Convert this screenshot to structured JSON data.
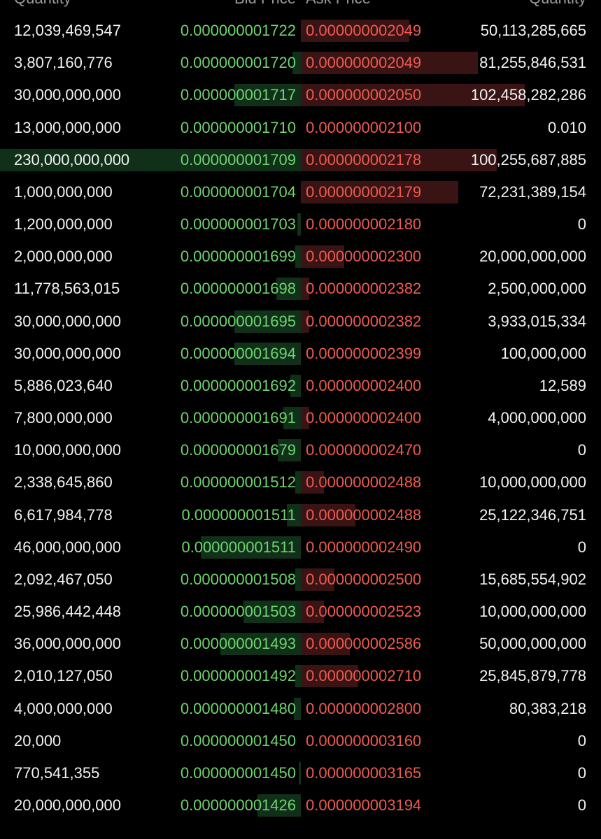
{
  "header": [
    "Quantity",
    "Bid Price",
    "Ask Price",
    "Quantity"
  ],
  "rows": [
    [
      "12,039,469,547",
      "0.000000001722",
      "0.000000002049",
      "50,113,285,665"
    ],
    [
      "3,807,160,776",
      "0.000000001720",
      "0.000000002049",
      "81,255,846,531"
    ],
    [
      "30,000,000,000",
      "0.000000001717",
      "0.000000002050",
      "102,458,282,286"
    ],
    [
      "13,000,000,000",
      "0.000000001710",
      "0.000000002100",
      "0.010"
    ],
    [
      "230,000,000,000",
      "0.000000001709",
      "0.000000002178",
      "100,255,687,885"
    ],
    [
      "1,000,000,000",
      "0.000000001704",
      "0.000000002179",
      "72,231,389,154"
    ],
    [
      "1,200,000,000",
      "0.000000001703",
      "0.000000002180",
      "0"
    ],
    [
      "2,000,000,000",
      "0.000000001699",
      "0.000000002300",
      "20,000,000,000"
    ],
    [
      "11,778,563,015",
      "0.000000001698",
      "0.000000002382",
      "2,500,000,000"
    ],
    [
      "30,000,000,000",
      "0.000000001695",
      "0.000000002382",
      "3,933,015,334"
    ],
    [
      "30,000,000,000",
      "0.000000001694",
      "0.000000002399",
      "100,000,000"
    ],
    [
      "5,886,023,640",
      "0.000000001692",
      "0.000000002400",
      "12,589"
    ],
    [
      "7,800,000,000",
      "0.000000001691",
      "0.000000002400",
      "4,000,000,000"
    ],
    [
      "10,000,000,000",
      "0.000000001679",
      "0.000000002470",
      "0"
    ],
    [
      "2,338,645,860",
      "0.000000001512",
      "0.000000002488",
      "10,000,000,000"
    ],
    [
      "6,617,984,778",
      "0.000000001511",
      "0.000000002488",
      "25,122,346,751"
    ],
    [
      "46,000,000,000",
      "0.000000001511",
      "0.000000002490",
      "0"
    ],
    [
      "2,092,467,050",
      "0.000000001508",
      "0.000000002500",
      "15,685,554,902"
    ],
    [
      "25,986,442,448",
      "0.000000001503",
      "0.000000002523",
      "10,000,000,000"
    ],
    [
      "36,000,000,000",
      "0.000000001493",
      "0.000000002586",
      "50,000,000,000"
    ],
    [
      "2,010,127,050",
      "0.000000001492",
      "0.000000002710",
      "25,845,879,778"
    ],
    [
      "4,000,000,000",
      "0.000000001480",
      "0.000000002800",
      "80,383,218"
    ],
    [
      "20,000",
      "0.000000001450",
      "0.000000003160",
      "0"
    ],
    [
      "770,541,355",
      "0.000000001450",
      "0.000000003165",
      "0"
    ],
    [
      "20,000,000,000",
      "0.000000001426",
      "0.000000003194",
      "0"
    ]
  ]
}
